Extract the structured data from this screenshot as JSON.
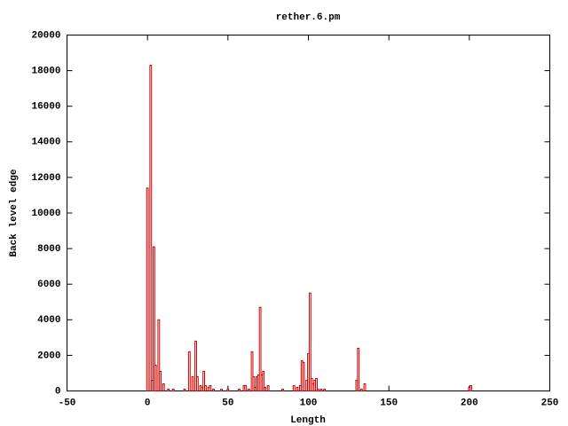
{
  "chart_data": {
    "type": "bar",
    "title": "rether.6.pm",
    "x_label": "Length",
    "y_label": "Back level edge",
    "x": [
      0,
      2,
      3,
      4,
      5,
      7,
      8,
      10,
      13,
      16,
      23,
      26,
      28,
      30,
      31,
      33,
      34,
      35,
      36,
      38,
      39,
      41,
      46,
      50,
      57,
      60,
      61,
      63,
      65,
      66,
      67,
      68,
      69,
      70,
      71,
      72,
      73,
      75,
      84,
      91,
      93,
      95,
      96,
      97,
      99,
      100,
      101,
      102,
      103,
      104,
      105,
      106,
      108,
      110,
      130,
      131,
      133,
      135,
      200,
      201
    ],
    "values": [
      11400,
      18300,
      600,
      8100,
      1450,
      4000,
      1100,
      400,
      100,
      100,
      100,
      2200,
      800,
      2800,
      800,
      300,
      200,
      1100,
      300,
      200,
      300,
      100,
      100,
      100,
      100,
      300,
      300,
      100,
      2200,
      800,
      200,
      800,
      900,
      4700,
      900,
      1100,
      200,
      300,
      100,
      300,
      200,
      300,
      1700,
      1600,
      600,
      2100,
      5500,
      700,
      400,
      600,
      700,
      100,
      100,
      100,
      600,
      2400,
      100,
      400,
      200,
      300
    ],
    "color": "#cc0000",
    "xlim": [
      -50,
      250
    ],
    "xticks": [
      -50,
      0,
      50,
      100,
      150,
      200,
      250
    ],
    "ylim": [
      0,
      20000
    ],
    "yticks": [
      0,
      2000,
      4000,
      6000,
      8000,
      10000,
      12000,
      14000,
      16000,
      18000,
      20000
    ]
  }
}
